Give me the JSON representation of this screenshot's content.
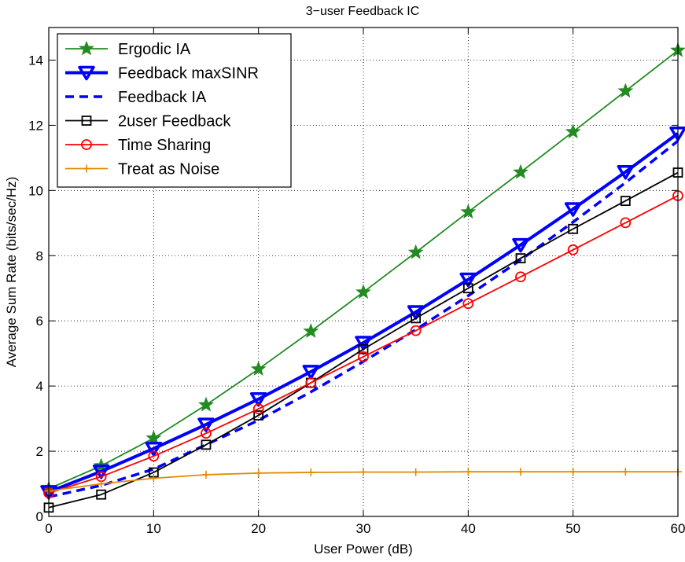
{
  "chart_data": {
    "type": "line",
    "title": "3−user Feedback IC",
    "xlabel": "User Power (dB)",
    "ylabel": "Average Sum Rate (bits/sec/Hz)",
    "xlim": [
      0,
      60
    ],
    "ylim": [
      0,
      15
    ],
    "xticks": [
      0,
      10,
      20,
      30,
      40,
      50,
      60
    ],
    "yticks": [
      0,
      2,
      4,
      6,
      8,
      10,
      12,
      14
    ],
    "grid": true,
    "legend_position": "top-left",
    "series": [
      {
        "name": "Ergodic IA",
        "color": "#228b22",
        "marker": "star",
        "line_style": "solid",
        "x": [
          0,
          5,
          10,
          15,
          20,
          25,
          30,
          35,
          40,
          45,
          50,
          55,
          60
        ],
        "y": [
          0.85,
          1.55,
          2.4,
          3.42,
          4.52,
          5.68,
          6.88,
          8.1,
          9.34,
          10.56,
          11.8,
          13.05,
          14.3
        ]
      },
      {
        "name": "Feedback maxSINR",
        "color": "#0000ff",
        "marker": "triangle-down",
        "line_style": "solid-thick",
        "x": [
          0,
          5,
          10,
          15,
          20,
          25,
          30,
          35,
          40,
          45,
          50,
          55,
          60
        ],
        "y": [
          0.75,
          1.38,
          2.08,
          2.82,
          3.6,
          4.44,
          5.33,
          6.27,
          7.27,
          8.33,
          9.43,
          10.57,
          11.75
        ]
      },
      {
        "name": "Feedback IA",
        "color": "#0000ff",
        "marker": "none",
        "line_style": "dashed",
        "x": [
          0,
          5,
          10,
          15,
          20,
          25,
          30,
          35,
          40,
          45,
          50,
          55,
          60
        ],
        "y": [
          0.6,
          0.95,
          1.45,
          2.2,
          2.95,
          3.82,
          4.75,
          5.73,
          6.77,
          7.87,
          9.03,
          10.24,
          11.52
        ]
      },
      {
        "name": "2user Feedback",
        "color": "#000000",
        "marker": "square",
        "line_style": "solid",
        "x": [
          0,
          5,
          10,
          15,
          20,
          25,
          30,
          35,
          40,
          45,
          50,
          55,
          60
        ],
        "y": [
          0.27,
          0.67,
          1.35,
          2.2,
          3.1,
          4.1,
          5.13,
          6.08,
          7.0,
          7.92,
          8.82,
          9.68,
          10.55
        ]
      },
      {
        "name": "Time Sharing",
        "color": "#ff0000",
        "marker": "circle",
        "line_style": "solid",
        "x": [
          0,
          5,
          10,
          15,
          20,
          25,
          30,
          35,
          40,
          45,
          50,
          55,
          60
        ],
        "y": [
          0.72,
          1.22,
          1.85,
          2.55,
          3.3,
          4.1,
          4.9,
          5.7,
          6.53,
          7.35,
          8.18,
          9.01,
          9.84
        ]
      },
      {
        "name": "Treat as Noise",
        "color": "#e08a00",
        "marker": "plus",
        "line_style": "solid",
        "x": [
          0,
          5,
          10,
          15,
          20,
          25,
          30,
          35,
          40,
          45,
          50,
          55,
          60
        ],
        "y": [
          0.78,
          1.0,
          1.17,
          1.28,
          1.33,
          1.35,
          1.36,
          1.36,
          1.37,
          1.37,
          1.37,
          1.37,
          1.37
        ]
      }
    ]
  }
}
